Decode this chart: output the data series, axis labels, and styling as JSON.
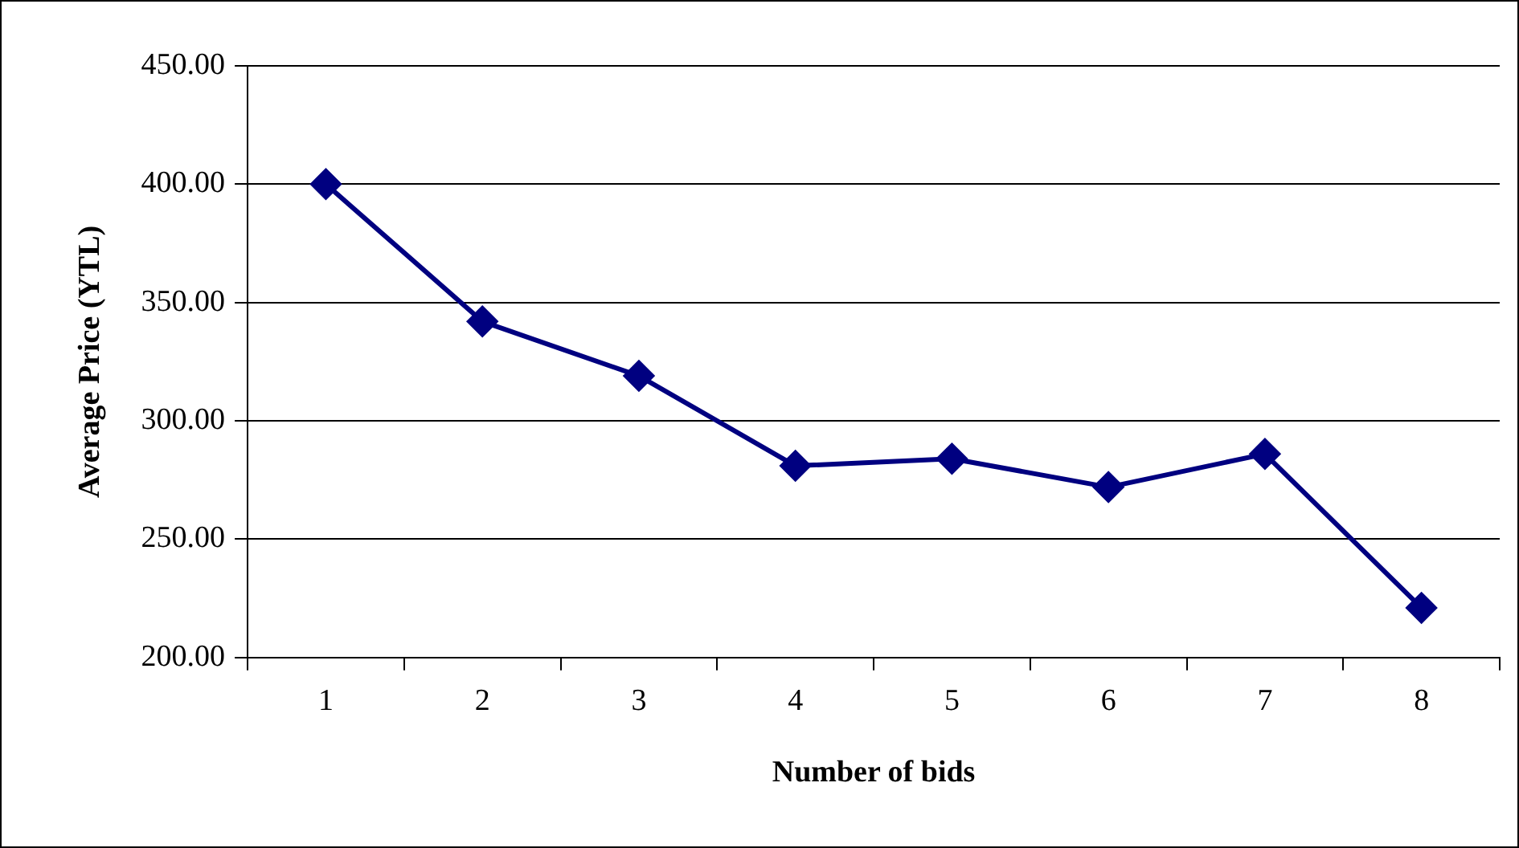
{
  "chart_data": {
    "type": "line",
    "xlabel": "Number of bids",
    "ylabel": "Average Price (YTL)",
    "categories": [
      "1",
      "2",
      "3",
      "4",
      "5",
      "6",
      "7",
      "8"
    ],
    "series": [
      {
        "color": "#000080",
        "values": [
          400,
          342,
          319,
          281,
          284,
          272,
          286,
          221
        ]
      }
    ],
    "ylim": [
      200,
      450
    ],
    "yticks": [
      {
        "value": 200,
        "label": "200.00"
      },
      {
        "value": 250,
        "label": "250.00"
      },
      {
        "value": 300,
        "label": "300.00"
      },
      {
        "value": 350,
        "label": "350.00"
      },
      {
        "value": 400,
        "label": "400.00"
      },
      {
        "value": 450,
        "label": "450.00"
      }
    ],
    "grid": "y",
    "legend": false,
    "marker": "diamond",
    "line_style": "solid"
  }
}
